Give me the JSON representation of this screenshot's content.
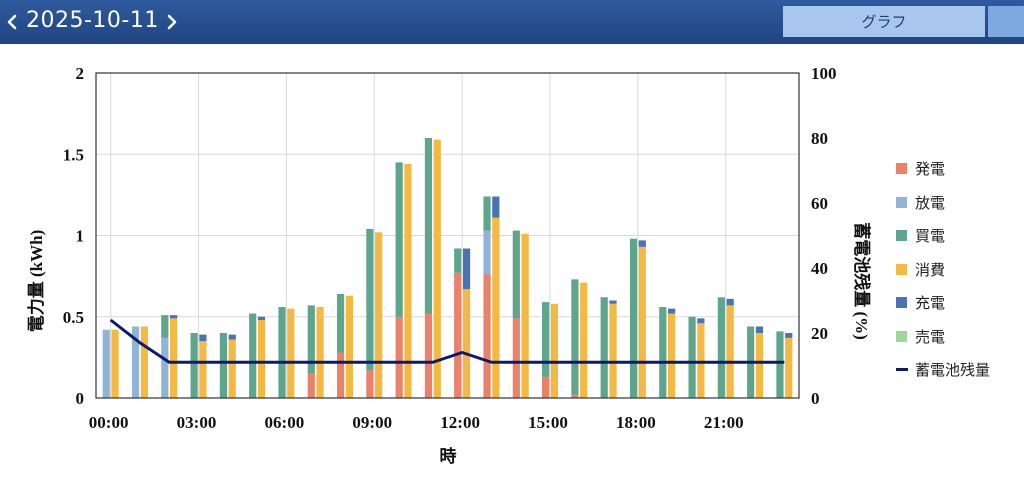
{
  "header": {
    "date": "2025-10-11",
    "tab_label": "グラフ",
    "prev_icon": "chevron-left-icon",
    "next_icon": "chevron-right-icon"
  },
  "chart_data": {
    "type": "bar",
    "stacked": true,
    "xlabel": "時",
    "ylabel": "電力量 (kWh)",
    "y2label": "蓄電池残量 (%)",
    "ylim": [
      0,
      2
    ],
    "y2lim": [
      0,
      100
    ],
    "yticks": [
      "0",
      "0.5",
      "1",
      "1.5",
      "2"
    ],
    "y2ticks": [
      "0",
      "20",
      "40",
      "60",
      "80",
      "100"
    ],
    "x_tick_labels": [
      "00:00",
      "03:00",
      "06:00",
      "09:00",
      "12:00",
      "15:00",
      "18:00",
      "21:00"
    ],
    "grid": true,
    "legend_position": "right",
    "hours": [
      "00:00",
      "01:00",
      "02:00",
      "03:00",
      "04:00",
      "05:00",
      "06:00",
      "07:00",
      "08:00",
      "09:00",
      "10:00",
      "11:00",
      "12:00",
      "13:00",
      "14:00",
      "15:00",
      "16:00",
      "17:00",
      "18:00",
      "19:00",
      "20:00",
      "21:00",
      "22:00",
      "23:00"
    ],
    "supply_stack": [
      {
        "name": "発電",
        "color": "#e9816b",
        "values": [
          0,
          0,
          0,
          0,
          0,
          0,
          0,
          0.15,
          0.28,
          0.17,
          0.5,
          0.52,
          0.77,
          0.76,
          0.49,
          0.13,
          0.02,
          0,
          0,
          0,
          0,
          0,
          0,
          0
        ]
      },
      {
        "name": "放電",
        "color": "#8fb4d6",
        "values": [
          0.42,
          0.44,
          0.37,
          0,
          0,
          0,
          0,
          0,
          0,
          0,
          0,
          0,
          0,
          0.27,
          0,
          0,
          0,
          0,
          0,
          0,
          0,
          0,
          0,
          0
        ]
      },
      {
        "name": "買電",
        "color": "#5ea58e",
        "values": [
          0,
          0,
          0.14,
          0.4,
          0.4,
          0.52,
          0.56,
          0.42,
          0.36,
          0.87,
          0.95,
          1.08,
          0.15,
          0.21,
          0.54,
          0.46,
          0.71,
          0.62,
          0.98,
          0.56,
          0.5,
          0.62,
          0.44,
          0.41
        ]
      }
    ],
    "usage_stack": [
      {
        "name": "消費",
        "color": "#f4b942",
        "values": [
          0.42,
          0.44,
          0.49,
          0.35,
          0.36,
          0.48,
          0.55,
          0.56,
          0.63,
          1.02,
          1.44,
          1.59,
          0.67,
          1.11,
          1.01,
          0.58,
          0.71,
          0.58,
          0.93,
          0.52,
          0.46,
          0.57,
          0.4,
          0.37
        ]
      },
      {
        "name": "充電",
        "color": "#4a73b4",
        "values": [
          0,
          0,
          0.02,
          0.04,
          0.03,
          0.02,
          0,
          0,
          0,
          0,
          0,
          0,
          0.25,
          0.13,
          0,
          0,
          0,
          0.02,
          0.04,
          0.03,
          0.03,
          0.04,
          0.04,
          0.03
        ]
      },
      {
        "name": "売電",
        "color": "#9ed79a",
        "values": [
          0,
          0,
          0,
          0,
          0,
          0,
          0,
          0,
          0,
          0,
          0,
          0,
          0,
          0,
          0,
          0,
          0,
          0,
          0,
          0,
          0,
          0,
          0,
          0
        ]
      }
    ],
    "line_series": {
      "name": "蓄電池残量",
      "color": "#0c1a6e",
      "unit": "%",
      "values": [
        24,
        17,
        11,
        11,
        11,
        11,
        11,
        11,
        11,
        11,
        11,
        11,
        14,
        11,
        11,
        11,
        11,
        11,
        11,
        11,
        11,
        11,
        11,
        11
      ]
    },
    "legend": [
      {
        "name": "発電",
        "color": "#e9816b",
        "kind": "bar"
      },
      {
        "name": "放電",
        "color": "#8fb4d6",
        "kind": "bar"
      },
      {
        "name": "買電",
        "color": "#5ea58e",
        "kind": "bar"
      },
      {
        "name": "消費",
        "color": "#f4b942",
        "kind": "bar"
      },
      {
        "name": "充電",
        "color": "#4a73b4",
        "kind": "bar"
      },
      {
        "name": "売電",
        "color": "#9ed79a",
        "kind": "bar"
      },
      {
        "name": "蓄電池残量",
        "color": "#0c1a6e",
        "kind": "line"
      }
    ]
  }
}
